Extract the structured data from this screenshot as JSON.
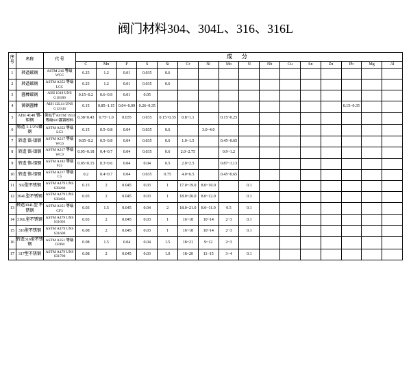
{
  "title": "阀门材料304、304L、316、316L",
  "headers": {
    "seq": "序号",
    "name": "名称",
    "code": "代 号",
    "composition": "成 分",
    "elements": [
      "C",
      "Mn",
      "P",
      "S",
      "Si",
      "Cr",
      "Ni",
      "Mo",
      "N",
      "Nb",
      "Cu",
      "Sn",
      "Zn",
      "Pb",
      "Mg",
      "Al"
    ]
  },
  "rows": [
    {
      "seq": "1",
      "name": "转造碳钢",
      "code": "ASTM 216 等级WCC",
      "c": [
        "0.25",
        "1.2",
        "0.01",
        "0.035",
        "0.6",
        "",
        "",
        "",
        "",
        "",
        "",
        "",
        "",
        "",
        "",
        ""
      ]
    },
    {
      "seq": "2",
      "name": "转造碳钢",
      "code": "ASTM A352 等级LCC",
      "c": [
        "0.25",
        "1.2",
        "0.01",
        "0.035",
        "0.6",
        "",
        "",
        "",
        "",
        "",
        "",
        "",
        "",
        "",
        "",
        ""
      ]
    },
    {
      "seq": "3",
      "name": "圆棒碳钢",
      "code": "AISI 1018 UNS G10180",
      "c": [
        "0.15~0.2",
        "0.6~0.9",
        "0.01",
        "0.05",
        "",
        "",
        "",
        "",
        "",
        "",
        "",
        "",
        "",
        "",
        "",
        ""
      ]
    },
    {
      "seq": "4",
      "name": "铸钢圆棒",
      "code": "AISI 12L14 UNS G12144",
      "c": [
        "0.15",
        "0.85~1.15",
        "0.04~0.09",
        "0.26~0.35",
        "",
        "",
        "",
        "",
        "",
        "",
        "",
        "",
        "",
        "0.15~0.35",
        "",
        ""
      ]
    },
    {
      "seq": "5",
      "name": "AISI 4140 铬-钼钢",
      "code": "类似于ASTM 1913等级60?镀铬材料",
      "c": [
        "0.38~0.43",
        "0.75~1.0",
        "0.035",
        "0.035",
        "0.15~0.35",
        "0.8~1.1",
        "",
        "0.15~0.25",
        "",
        "",
        "",
        "",
        "",
        "",
        "",
        ""
      ]
    },
    {
      "seq": "6",
      "name": "锻造 3-1/2%镍钢",
      "code": "ASTM A352 等级LC3",
      "c": [
        "0.15",
        "0.5~0.8",
        "0.04",
        "0.035",
        "0.6",
        "",
        "3.0~4.0",
        "",
        "",
        "",
        "",
        "",
        "",
        "",
        "",
        ""
      ]
    },
    {
      "seq": "7",
      "name": "转造 铬-钼钢",
      "code": "ASTM A217 等级WC6",
      "c": [
        "0.05~0.2",
        "0.5~0.8",
        "0.04",
        "0.035",
        "0.6",
        "1.0~1.5",
        "",
        "0.45~0.65",
        "",
        "",
        "",
        "",
        "",
        "",
        "",
        ""
      ]
    },
    {
      "seq": "8",
      "name": "转造 铬-钼钢",
      "code": "ASTM A217 等级WC9",
      "c": [
        "0.05~0.18",
        "0.4~0.7",
        "0.04",
        "0.035",
        "0.6",
        "2.0~2.75",
        "",
        "0.9~1.2",
        "",
        "",
        "",
        "",
        "",
        "",
        "",
        ""
      ]
    },
    {
      "seq": "9",
      "name": "转造 铬-钼钢",
      "code": "ASTM A182 等级F22",
      "c": [
        "0.05~0.15",
        "0.3~0.6",
        "0.04",
        "0.04",
        "0.5",
        "2.0~2.5",
        "",
        "0.87~1.13",
        "",
        "",
        "",
        "",
        "",
        "",
        "",
        ""
      ]
    },
    {
      "seq": "10",
      "name": "转造 铬-钼钢",
      "code": "ASTM A217 等级C5",
      "c": [
        "0.2",
        "0.4~0.7",
        "0.04",
        "0.035",
        "0.75",
        "4.0~6.5",
        "",
        "0.45~0.65",
        "",
        "",
        "",
        "",
        "",
        "",
        "",
        ""
      ]
    },
    {
      "seq": "11",
      "name": "302型不锈钢",
      "code": "ASTM A479 UNS S30200",
      "c": [
        "0.15",
        "2",
        "0.045",
        "0.03",
        "1",
        "17.0~19.0",
        "8.0~10.0",
        "",
        "0.1",
        "",
        "",
        "",
        "",
        "",
        "",
        ""
      ]
    },
    {
      "seq": "12",
      "name": "304L型不锈钢",
      "code": "ASTM A479 UNS S30403",
      "c": [
        "0.03",
        "2",
        "0.045",
        "0.03",
        "1",
        "18.0~20.0",
        "8.0~12.0",
        "",
        "0.1",
        "",
        "",
        "",
        "",
        "",
        "",
        ""
      ]
    },
    {
      "seq": "13",
      "name": "转造304L型 不锈钢",
      "code": "ASTM A351 等级CF3",
      "c": [
        "0.03",
        "1.5",
        "0.045",
        "0.04",
        "2",
        "18.0~21.0",
        "8.0~11.0",
        "0.5",
        "0.1",
        "",
        "",
        "",
        "",
        "",
        "",
        ""
      ]
    },
    {
      "seq": "14",
      "name": "316L型不锈钢",
      "code": "ASTM A479 UNS S31603",
      "c": [
        "0.03",
        "2",
        "0.045",
        "0.03",
        "1",
        "16~18",
        "10~14",
        "2~3",
        "0.1",
        "",
        "",
        "",
        "",
        "",
        "",
        ""
      ]
    },
    {
      "seq": "15",
      "name": "316型不锈钢",
      "code": "ASTM A479 UNS S31600",
      "c": [
        "0.08",
        "2",
        "0.045",
        "0.03",
        "1",
        "16~18",
        "10~14",
        "2~3",
        "0.1",
        "",
        "",
        "",
        "",
        "",
        "",
        ""
      ]
    },
    {
      "seq": "16",
      "name": "转造316型不锈钢",
      "code": "ASTM A351 等级CF8M",
      "c": [
        "0.08",
        "1.5",
        "0.04",
        "0.04",
        "1.5",
        "18~21",
        "9~12",
        "2~3",
        "",
        "",
        "",
        "",
        "",
        "",
        "",
        ""
      ]
    },
    {
      "seq": "17",
      "name": "317型不锈钢",
      "code": "ASTM A479 UNS S31700",
      "c": [
        "0.08",
        "2",
        "0.045",
        "0.03",
        "1.0",
        "18~20",
        "11~15",
        "3~4",
        "0.1",
        "",
        "",
        "",
        "",
        "",
        "",
        ""
      ]
    }
  ]
}
